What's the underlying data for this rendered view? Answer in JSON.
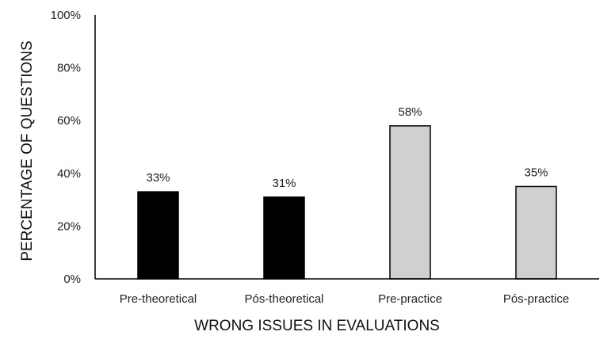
{
  "chart_data": {
    "type": "bar",
    "title": "",
    "categories": [
      "Pre-theoretical",
      "Pós-theoretical",
      "Pre-practice",
      "Pós-practice"
    ],
    "values": [
      33,
      31,
      58,
      35
    ],
    "data_labels": [
      "33%",
      "31%",
      "58%",
      "35%"
    ],
    "bar_colors": [
      "#000000",
      "#000000",
      "#d0d0d0",
      "#d0d0d0"
    ],
    "xlabel": "WRONG ISSUES IN EVALUATIONS",
    "ylabel": "PERCENTAGE OF QUESTIONS",
    "ylim": [
      0,
      100
    ],
    "yticks": [
      0,
      20,
      40,
      60,
      80,
      100
    ],
    "ytick_labels": [
      "0%",
      "20%",
      "40%",
      "60%",
      "80%",
      "100%"
    ],
    "grid": false,
    "legend": "none"
  }
}
